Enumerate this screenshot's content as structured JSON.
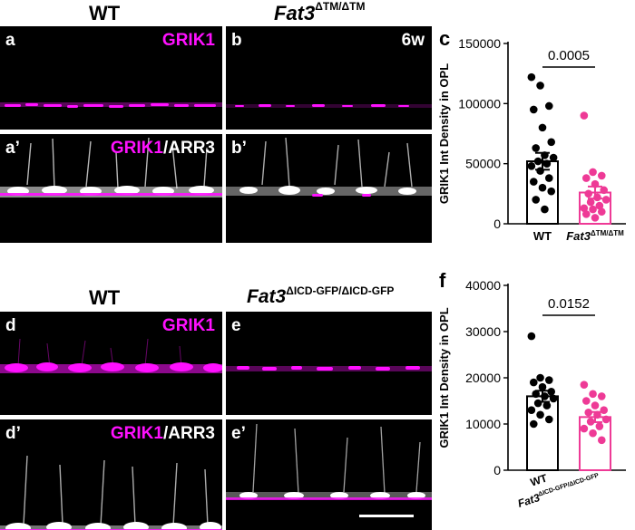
{
  "top": {
    "col_wt": "WT",
    "col_mut_base": "Fat3",
    "col_mut_sup": "ΔTM/ΔTM",
    "panels": {
      "a": "a",
      "b": "b",
      "a2": "a’",
      "b2": "b’"
    },
    "marker_top": "GRIK1",
    "marker_ARR": "/ARR3",
    "age": "6w",
    "chart_letter": "c"
  },
  "bottom": {
    "col_wt": "WT",
    "col_mut_base": "Fat3",
    "col_mut_sup": "ΔICD-GFP/ΔICD-GFP",
    "panels": {
      "d": "d",
      "e": "e",
      "d2": "d’",
      "e2": "e’"
    },
    "marker_top": "GRIK1",
    "marker_ARR": "/ARR3",
    "chart_letter": "f"
  },
  "colors": {
    "magenta": "#ff10ff",
    "wt_dot": "#000000",
    "mut_dot": "#ee3a96",
    "mut_bar": "#ee3a96"
  },
  "chart_data": [
    {
      "type": "bar",
      "panel": "c",
      "categories": [
        "WT",
        "Fat3ΔTM/ΔTM"
      ],
      "category_base": [
        "WT",
        "Fat3"
      ],
      "category_sup": [
        "",
        "ΔTM/ΔTM"
      ],
      "means": [
        52000,
        26000
      ],
      "sem": [
        7000,
        5000
      ],
      "points": [
        [
          122000,
          115000,
          98000,
          95000,
          80000,
          68000,
          63000,
          57000,
          55000,
          52000,
          50000,
          48000,
          44000,
          38000,
          35000,
          30000,
          27000,
          20000,
          12000
        ],
        [
          90000,
          43000,
          40000,
          38000,
          33000,
          28000,
          25000,
          22000,
          20000,
          18000,
          15000,
          13000,
          12000,
          10000,
          8000,
          5000
        ]
      ],
      "ylabel": "GRIK1 Int Density in OPL",
      "ylim": [
        0,
        150000
      ],
      "yticks": [
        0,
        50000,
        100000,
        150000
      ],
      "yticklabels": [
        "0",
        "50000",
        "100000",
        "150000"
      ],
      "p_value": "0.0005"
    },
    {
      "type": "bar",
      "panel": "f",
      "categories": [
        "WT",
        "Fat3ΔICD-GFP/ΔICD-GFP"
      ],
      "category_base": [
        "WT",
        "Fat3"
      ],
      "category_sup": [
        "",
        "ΔICD-GFP/ΔICD-GFP"
      ],
      "means": [
        16000,
        11500
      ],
      "sem": [
        1200,
        1100
      ],
      "points": [
        [
          29000,
          20000,
          19500,
          19000,
          18000,
          17000,
          16500,
          16000,
          15500,
          14500,
          14000,
          13000,
          12000,
          11000,
          10000
        ],
        [
          18500,
          16500,
          16000,
          15000,
          14000,
          13000,
          12500,
          12000,
          11000,
          10500,
          9500,
          9000,
          8000,
          6500
        ]
      ],
      "ylabel": "GRIK1 Int Density in OPL",
      "ylim": [
        0,
        40000
      ],
      "yticks": [
        0,
        10000,
        20000,
        30000,
        40000
      ],
      "yticklabels": [
        "0",
        "10000",
        "20000",
        "30000",
        "40000"
      ],
      "p_value": "0.0152"
    }
  ]
}
